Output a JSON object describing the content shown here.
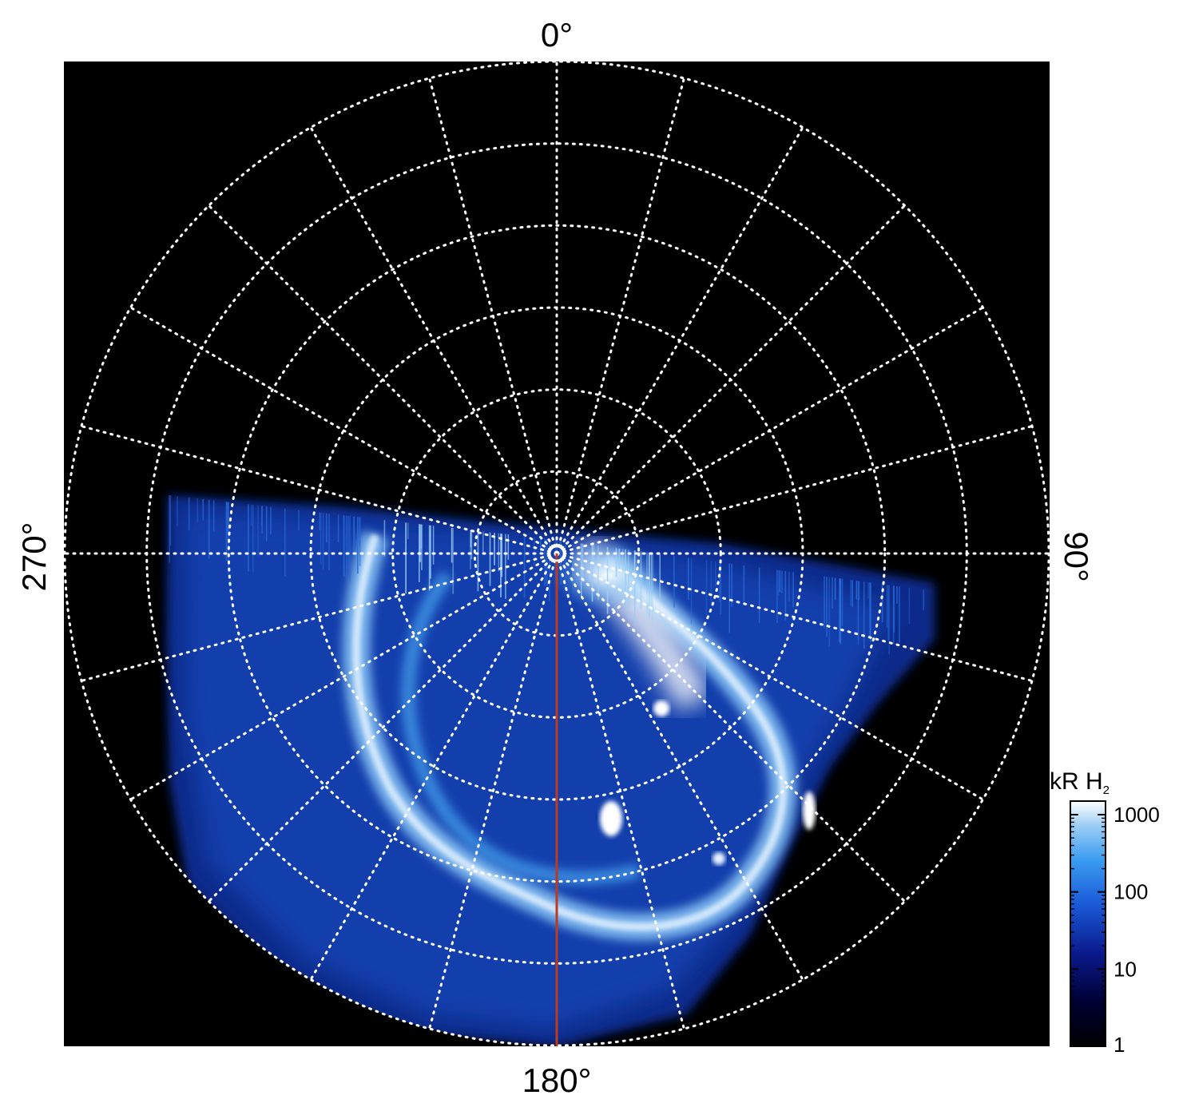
{
  "chart_data": {
    "type": "heatmap",
    "projection": "polar",
    "azimuth_labels": [
      "0°",
      "90°",
      "180°",
      "270°"
    ],
    "meridian_spacing_deg": 15,
    "latitude_circle_count": 6,
    "grid": true,
    "grid_style": "dotted white",
    "highlighted_meridian": {
      "longitude": "180°",
      "color": "#c0391b"
    },
    "colorbar": {
      "label": "kR H",
      "label_subscript": "2",
      "scale": "log",
      "ticks": [
        "1",
        "10",
        "100",
        "1000"
      ],
      "range": [
        1,
        1500
      ],
      "placement": "right-bottom",
      "colors": [
        "#000000",
        "#000033",
        "#0a1a8c",
        "#1a5ad8",
        "#3a9cf0",
        "#9ccdf5",
        "#ffffff"
      ]
    },
    "background_color": "#000000"
  }
}
